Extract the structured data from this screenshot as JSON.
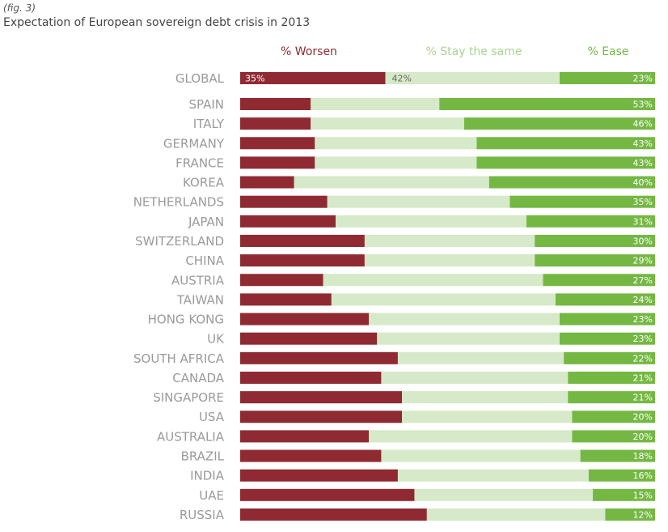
{
  "figure": {
    "label": "(fig. 3)",
    "title": "Expectation of European sovereign debt crisis in 2013"
  },
  "chart_data": {
    "type": "bar",
    "orientation": "horizontal",
    "stacked": true,
    "normalized_to": 100,
    "title": "Expectation of European sovereign debt crisis in 2013",
    "colors": {
      "worsen": "#8f2a33",
      "stay": "#d6e9c8",
      "ease": "#74b843"
    },
    "legend": [
      "% Worsen",
      "% Stay the same",
      "% Ease"
    ],
    "categories": [
      "GLOBAL",
      "SPAIN",
      "ITALY",
      "GERMANY",
      "FRANCE",
      "KOREA",
      "NETHERLANDS",
      "JAPAN",
      "SWITZERLAND",
      "CHINA",
      "AUSTRIA",
      "TAIWAN",
      "HONG KONG",
      "UK",
      "SOUTH AFRICA",
      "CANADA",
      "SINGAPORE",
      "USA",
      "AUSTRALIA",
      "BRAZIL",
      "INDIA",
      "UAE",
      "RUSSIA"
    ],
    "series": [
      {
        "name": "% Worsen",
        "key": "worsen",
        "values": [
          35,
          17,
          17,
          18,
          18,
          13,
          21,
          23,
          30,
          30,
          20,
          22,
          31,
          33,
          38,
          34,
          39,
          39,
          31,
          34,
          38,
          42,
          45
        ]
      },
      {
        "name": "% Stay the same",
        "key": "stay",
        "values": [
          42,
          31,
          37,
          39,
          39,
          47,
          44,
          46,
          41,
          41,
          53,
          54,
          46,
          44,
          40,
          45,
          40,
          41,
          49,
          48,
          46,
          43,
          43
        ]
      },
      {
        "name": "% Ease",
        "key": "ease",
        "values": [
          23,
          53,
          46,
          43,
          43,
          40,
          35,
          31,
          30,
          29,
          27,
          24,
          23,
          23,
          22,
          21,
          21,
          20,
          20,
          18,
          16,
          15,
          12
        ]
      }
    ],
    "labels": {
      "worsen": [
        "35%"
      ],
      "stay": [
        "42%"
      ],
      "ease": [
        "23%",
        "53%",
        "46%",
        "43%",
        "43%",
        "40%",
        "35%",
        "31%",
        "30%",
        "29%",
        "27%",
        "24%",
        "23%",
        "23%",
        "22%",
        "21%",
        "21%",
        "20%",
        "20%",
        "18%",
        "16%",
        "15%",
        "12%"
      ]
    }
  }
}
